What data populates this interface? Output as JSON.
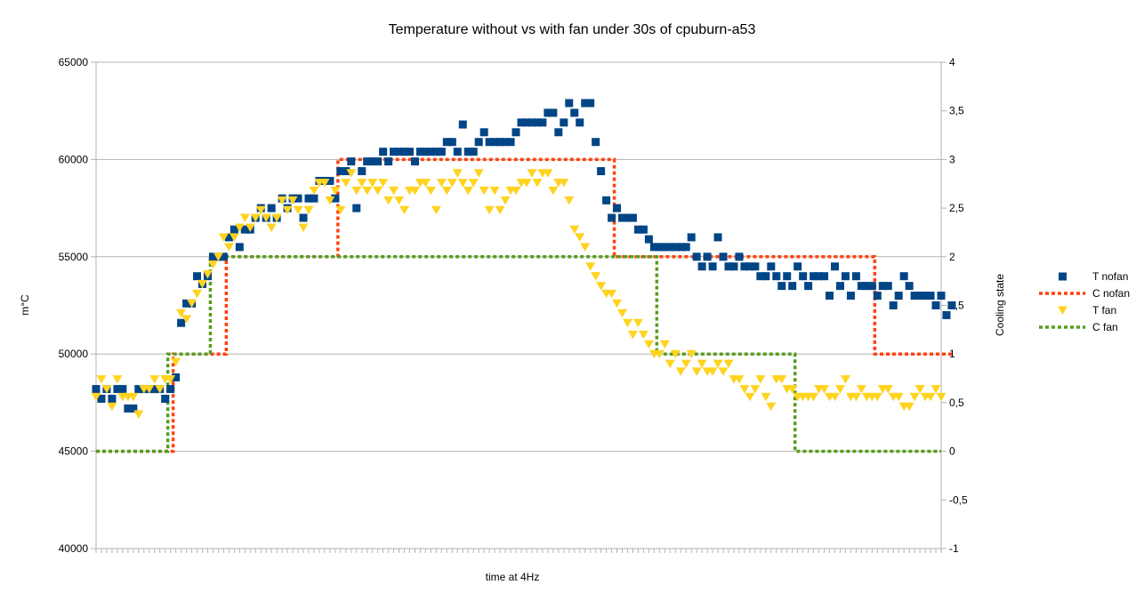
{
  "chart_data": {
    "type": "line",
    "title": "Temperature without vs with fan under 30s of cpuburn-a53",
    "xlabel": "time at 4Hz",
    "ylabel": "m°C",
    "y2label": "Cooling state",
    "ylim": [
      40000,
      65000
    ],
    "y2lim": [
      -1,
      4
    ],
    "yticks": [
      "40000",
      "45000",
      "50000",
      "55000",
      "60000",
      "65000"
    ],
    "y2ticks": [
      "-1",
      "-0,5",
      "0",
      "0,5",
      "1",
      "1,5",
      "2",
      "2,5",
      "3",
      "3,5",
      "4"
    ],
    "x_count": 160,
    "grid": "horizontal",
    "legend_position": "right",
    "series": [
      {
        "name": "T nofan",
        "axis": "left",
        "marker": "square",
        "color": "#004586",
        "values": [
          48200,
          47700,
          48200,
          47700,
          48200,
          48200,
          47200,
          47200,
          48200,
          48200,
          48200,
          48200,
          48200,
          47700,
          48200,
          48800,
          51600,
          52600,
          52600,
          54000,
          53600,
          54000,
          55000,
          55000,
          55000,
          56000,
          56400,
          55500,
          56400,
          56400,
          57000,
          57500,
          57000,
          57500,
          57000,
          58000,
          57500,
          58000,
          58000,
          57000,
          58000,
          58000,
          58900,
          58900,
          58900,
          58000,
          59400,
          59400,
          59900,
          57500,
          59400,
          59900,
          59900,
          59900,
          60400,
          59900,
          60400,
          60400,
          60400,
          60400,
          59900,
          60400,
          60400,
          60400,
          60400,
          60400,
          60900,
          60900,
          60400,
          61800,
          60400,
          60400,
          60900,
          61400,
          60900,
          60900,
          60900,
          60900,
          60900,
          61400,
          61900,
          61900,
          61900,
          61900,
          61900,
          62400,
          62400,
          61400,
          61900,
          62900,
          62400,
          61900,
          62900,
          62900,
          60900,
          59400,
          57900,
          57000,
          57500,
          57000,
          57000,
          57000,
          56400,
          56400,
          55900,
          55500,
          55500,
          55500,
          55500,
          55500,
          55500,
          55500,
          56000,
          55000,
          54500,
          55000,
          54500,
          56000,
          55000,
          54500,
          54500,
          55000,
          54500,
          54500,
          54500,
          54000,
          54000,
          54500,
          54000,
          53500,
          54000,
          53500,
          54500,
          54000,
          53500,
          54000,
          54000,
          54000,
          53000,
          54500,
          53500,
          54000,
          53000,
          54000,
          53500,
          53500,
          53500,
          53000,
          53500,
          53500,
          52500,
          53000,
          54000,
          53500,
          53000,
          53000,
          53000,
          53000,
          52500,
          53000,
          52000,
          52500
        ],
        "_note": "values estimated from plot"
      },
      {
        "name": "C nofan",
        "axis": "right",
        "line": "dotted",
        "color": "#ff420e",
        "values": [
          0,
          0,
          0,
          0,
          0,
          0,
          0,
          0,
          0,
          0,
          0,
          0,
          0,
          0,
          0,
          1,
          1,
          1,
          1,
          1,
          1,
          1,
          1,
          1,
          1,
          2,
          2,
          2,
          2,
          2,
          2,
          2,
          2,
          2,
          2,
          2,
          2,
          2,
          2,
          2,
          2,
          2,
          2,
          2,
          2,
          2,
          3,
          3,
          3,
          3,
          3,
          3,
          3,
          3,
          3,
          3,
          3,
          3,
          3,
          3,
          3,
          3,
          3,
          3,
          3,
          3,
          3,
          3,
          3,
          3,
          3,
          3,
          3,
          3,
          3,
          3,
          3,
          3,
          3,
          3,
          3,
          3,
          3,
          3,
          3,
          3,
          3,
          3,
          3,
          3,
          3,
          3,
          3,
          3,
          3,
          3,
          3,
          3,
          2,
          2,
          2,
          2,
          2,
          2,
          2,
          2,
          2,
          2,
          2,
          2,
          2,
          2,
          2,
          2,
          2,
          2,
          2,
          2,
          2,
          2,
          2,
          2,
          2,
          2,
          2,
          2,
          2,
          2,
          2,
          2,
          2,
          2,
          2,
          2,
          2,
          2,
          2,
          2,
          2,
          2,
          2,
          2,
          2,
          2,
          2,
          2,
          2,
          1,
          1,
          1,
          1,
          1,
          1,
          1,
          1,
          1,
          1,
          1,
          1,
          1,
          1,
          1
        ]
      },
      {
        "name": "T fan",
        "axis": "left",
        "marker": "triangle-down",
        "color": "#ffd320",
        "values": [
          47800,
          48700,
          48200,
          47300,
          48700,
          47800,
          47800,
          47800,
          46900,
          48200,
          48200,
          48700,
          48200,
          48700,
          48700,
          49600,
          52100,
          51800,
          52600,
          53100,
          53600,
          54100,
          54600,
          55000,
          56000,
          55500,
          56000,
          56500,
          57000,
          56500,
          57000,
          57400,
          57000,
          56500,
          57000,
          57900,
          57400,
          57900,
          57400,
          56500,
          57400,
          58400,
          58800,
          58800,
          57900,
          58400,
          57400,
          58800,
          59300,
          58400,
          58800,
          58400,
          58800,
          58400,
          58800,
          57900,
          58400,
          57900,
          57400,
          58400,
          58400,
          58800,
          58800,
          58400,
          57400,
          58800,
          58400,
          58800,
          59300,
          58800,
          58400,
          58800,
          59300,
          58400,
          57400,
          58400,
          57400,
          57900,
          58400,
          58400,
          58800,
          58800,
          59300,
          58800,
          59300,
          59300,
          58400,
          58800,
          58800,
          57900,
          56400,
          56000,
          55500,
          54500,
          54000,
          53500,
          53100,
          53100,
          52600,
          52100,
          51600,
          51000,
          51600,
          51000,
          50500,
          50000,
          50000,
          50500,
          49500,
          50000,
          49100,
          49500,
          50000,
          49100,
          49500,
          49100,
          49100,
          49500,
          49100,
          49500,
          48700,
          48700,
          48200,
          47800,
          48200,
          48700,
          47800,
          47300,
          48700,
          48700,
          48200,
          48200,
          47800,
          47800,
          47800,
          47800,
          48200,
          48200,
          47800,
          47800,
          48200,
          48700,
          47800,
          47800,
          48200,
          47800,
          47800,
          47800,
          48200,
          48200,
          47800,
          47800,
          47300,
          47300,
          47800,
          48200,
          47800,
          47800,
          48200,
          47800
        ]
      },
      {
        "name": "C fan",
        "axis": "right",
        "line": "dotted",
        "color": "#579d1c",
        "values": [
          0,
          0,
          0,
          0,
          0,
          0,
          0,
          0,
          0,
          0,
          0,
          0,
          0,
          0,
          1,
          1,
          1,
          1,
          1,
          1,
          1,
          1,
          2,
          2,
          2,
          2,
          2,
          2,
          2,
          2,
          2,
          2,
          2,
          2,
          2,
          2,
          2,
          2,
          2,
          2,
          2,
          2,
          2,
          2,
          2,
          2,
          2,
          2,
          2,
          2,
          2,
          2,
          2,
          2,
          2,
          2,
          2,
          2,
          2,
          2,
          2,
          2,
          2,
          2,
          2,
          2,
          2,
          2,
          2,
          2,
          2,
          2,
          2,
          2,
          2,
          2,
          2,
          2,
          2,
          2,
          2,
          2,
          2,
          2,
          2,
          2,
          2,
          2,
          2,
          2,
          2,
          2,
          2,
          2,
          2,
          2,
          2,
          2,
          2,
          2,
          2,
          2,
          2,
          2,
          2,
          2,
          1,
          1,
          1,
          1,
          1,
          1,
          1,
          1,
          1,
          1,
          1,
          1,
          1,
          1,
          1,
          1,
          1,
          1,
          1,
          1,
          1,
          1,
          1,
          1,
          1,
          1,
          0,
          0,
          0,
          0,
          0,
          0,
          0,
          0,
          0,
          0,
          0,
          0,
          0,
          0,
          0,
          0,
          0,
          0,
          0,
          0,
          0,
          0,
          0,
          0,
          0,
          0,
          0,
          0
        ]
      }
    ]
  }
}
